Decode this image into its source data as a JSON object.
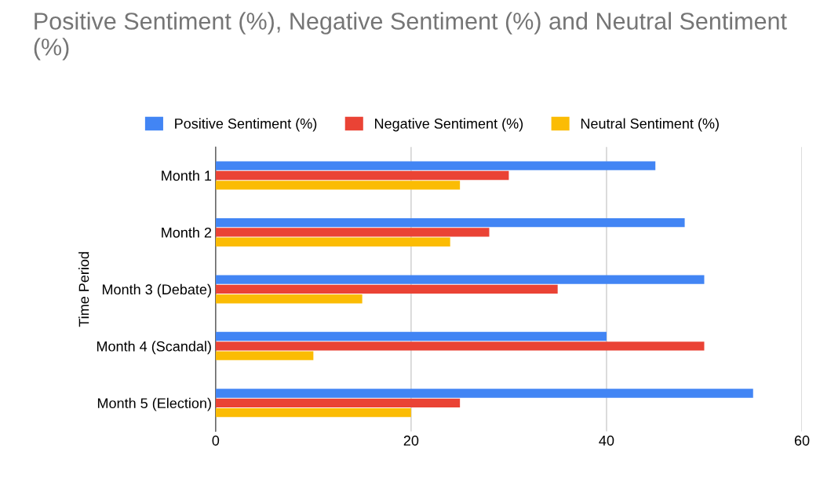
{
  "chart_data": {
    "type": "bar",
    "orientation": "horizontal",
    "title": "Positive Sentiment (%), Negative Sentiment (%) and Neutral Sentiment (%)",
    "ylabel": "Time Period",
    "categories": [
      "Month 1",
      "Month 2",
      "Month 3 (Debate)",
      "Month 4 (Scandal)",
      "Month 5 (Election)"
    ],
    "series": [
      {
        "name": "Positive Sentiment (%)",
        "color": "#4285f4",
        "values": [
          45,
          48,
          50,
          40,
          55
        ]
      },
      {
        "name": "Negative Sentiment (%)",
        "color": "#ea4335",
        "values": [
          30,
          28,
          35,
          50,
          25
        ]
      },
      {
        "name": "Neutral Sentiment (%)",
        "color": "#fbbc04",
        "values": [
          25,
          24,
          15,
          10,
          20
        ]
      }
    ],
    "xlim": [
      0,
      60
    ],
    "xticks": [
      0,
      20,
      40,
      60
    ],
    "grid": "x",
    "legend": "top"
  }
}
